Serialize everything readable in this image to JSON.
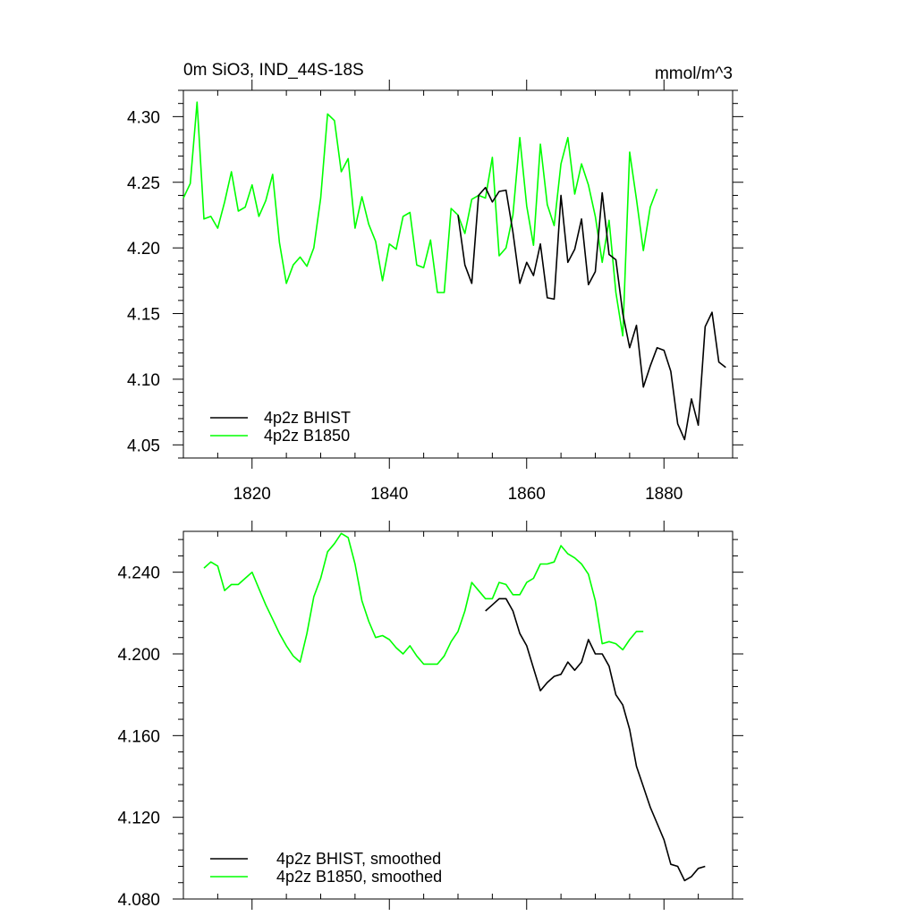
{
  "header": {
    "left_title": "0m SiO3, IND_44S-18S",
    "right_title": "mmol/m^3"
  },
  "colors": {
    "bhist": "#000000",
    "b1850": "#00ff00"
  },
  "chart_data": [
    {
      "type": "line",
      "title": "0m SiO3, IND_44S-18S",
      "units": "mmol/m^3",
      "xlim": [
        1810,
        1890
      ],
      "ylim": [
        4.04,
        4.32
      ],
      "xticks": [
        1820,
        1840,
        1860,
        1880
      ],
      "xtick_labels": [
        "1820",
        "1840",
        "1860",
        "1880"
      ],
      "yticks": [
        4.05,
        4.1,
        4.15,
        4.2,
        4.25,
        4.3
      ],
      "ytick_labels": [
        "4.05",
        "4.10",
        "4.15",
        "4.20",
        "4.25",
        "4.30"
      ],
      "grid": false,
      "legend_position": "bottom-left",
      "series": [
        {
          "name": "4p2z BHIST",
          "color": "#000000",
          "x": [
            1850,
            1851,
            1852,
            1853,
            1854,
            1855,
            1856,
            1857,
            1858,
            1859,
            1860,
            1861,
            1862,
            1863,
            1864,
            1865,
            1866,
            1867,
            1868,
            1869,
            1870,
            1871,
            1872,
            1873,
            1874,
            1875,
            1876,
            1877,
            1878,
            1879,
            1880,
            1881,
            1882,
            1883,
            1884,
            1885,
            1886,
            1887,
            1888,
            1889
          ],
          "values": [
            4.225,
            4.187,
            4.173,
            4.24,
            4.246,
            4.235,
            4.243,
            4.244,
            4.212,
            4.173,
            4.189,
            4.179,
            4.203,
            4.162,
            4.161,
            4.24,
            4.189,
            4.199,
            4.222,
            4.172,
            4.182,
            4.242,
            4.195,
            4.191,
            4.15,
            4.124,
            4.141,
            4.094,
            4.11,
            4.124,
            4.122,
            4.106,
            4.066,
            4.054,
            4.085,
            4.065,
            4.14,
            4.151,
            4.113,
            4.109
          ]
        },
        {
          "name": "4p2z B1850",
          "color": "#00ff00",
          "x": [
            1810,
            1811,
            1812,
            1813,
            1814,
            1815,
            1816,
            1817,
            1818,
            1819,
            1820,
            1821,
            1822,
            1823,
            1824,
            1825,
            1826,
            1827,
            1828,
            1829,
            1830,
            1831,
            1832,
            1833,
            1834,
            1835,
            1836,
            1837,
            1838,
            1839,
            1840,
            1841,
            1842,
            1843,
            1844,
            1845,
            1846,
            1847,
            1848,
            1849,
            1850,
            1851,
            1852,
            1853,
            1854,
            1855,
            1856,
            1857,
            1858,
            1859,
            1860,
            1861,
            1862,
            1863,
            1864,
            1865,
            1866,
            1867,
            1868,
            1869,
            1870,
            1871,
            1872,
            1873,
            1874,
            1875,
            1876,
            1877,
            1878,
            1879
          ],
          "values": [
            4.238,
            4.249,
            4.311,
            4.222,
            4.224,
            4.215,
            4.235,
            4.258,
            4.228,
            4.231,
            4.248,
            4.224,
            4.236,
            4.256,
            4.204,
            4.173,
            4.187,
            4.193,
            4.186,
            4.2,
            4.238,
            4.302,
            4.297,
            4.258,
            4.268,
            4.215,
            4.239,
            4.218,
            4.205,
            4.175,
            4.203,
            4.199,
            4.224,
            4.227,
            4.187,
            4.185,
            4.206,
            4.166,
            4.166,
            4.23,
            4.225,
            4.211,
            4.237,
            4.24,
            4.238,
            4.269,
            4.194,
            4.2,
            4.225,
            4.284,
            4.232,
            4.202,
            4.279,
            4.233,
            4.217,
            4.264,
            4.284,
            4.241,
            4.264,
            4.248,
            4.224,
            4.189,
            4.221,
            4.166,
            4.133,
            4.273,
            4.237,
            4.198,
            4.231,
            4.245
          ]
        }
      ]
    },
    {
      "type": "line",
      "xlim": [
        1810,
        1890
      ],
      "ylim": [
        4.08,
        4.26
      ],
      "xticks": [
        1820,
        1840,
        1860,
        1880
      ],
      "yticks": [
        4.08,
        4.12,
        4.16,
        4.2,
        4.24
      ],
      "ytick_labels": [
        "4.080",
        "4.120",
        "4.160",
        "4.200",
        "4.240"
      ],
      "grid": false,
      "legend_position": "bottom-left",
      "series": [
        {
          "name": "4p2z BHIST, smoothed",
          "color": "#000000",
          "x": [
            1854,
            1855,
            1856,
            1857,
            1858,
            1859,
            1860,
            1861,
            1862,
            1863,
            1864,
            1865,
            1866,
            1867,
            1868,
            1869,
            1870,
            1871,
            1872,
            1873,
            1874,
            1875,
            1876,
            1877,
            1878,
            1879,
            1880,
            1881,
            1882,
            1883,
            1884,
            1885,
            1886
          ],
          "values": [
            4.221,
            4.224,
            4.227,
            4.227,
            4.221,
            4.21,
            4.204,
            4.193,
            4.182,
            4.186,
            4.189,
            4.19,
            4.196,
            4.192,
            4.196,
            4.207,
            4.2,
            4.2,
            4.194,
            4.18,
            4.175,
            4.163,
            4.145,
            4.135,
            4.125,
            4.117,
            4.109,
            4.097,
            4.096,
            4.089,
            4.091,
            4.095,
            4.096
          ]
        },
        {
          "name": "4p2z B1850, smoothed",
          "color": "#00ff00",
          "x": [
            1813,
            1814,
            1815,
            1816,
            1817,
            1818,
            1819,
            1820,
            1821,
            1822,
            1823,
            1824,
            1825,
            1826,
            1827,
            1828,
            1829,
            1830,
            1831,
            1832,
            1833,
            1834,
            1835,
            1836,
            1837,
            1838,
            1839,
            1840,
            1841,
            1842,
            1843,
            1844,
            1845,
            1846,
            1847,
            1848,
            1849,
            1850,
            1851,
            1852,
            1853,
            1854,
            1855,
            1856,
            1857,
            1858,
            1859,
            1860,
            1861,
            1862,
            1863,
            1864,
            1865,
            1866,
            1867,
            1868,
            1869,
            1870,
            1871,
            1872,
            1873,
            1874,
            1875,
            1876,
            1877
          ],
          "values": [
            4.242,
            4.245,
            4.243,
            4.231,
            4.234,
            4.234,
            4.237,
            4.24,
            4.232,
            4.224,
            4.217,
            4.21,
            4.204,
            4.199,
            4.196,
            4.21,
            4.228,
            4.237,
            4.25,
            4.254,
            4.259,
            4.257,
            4.244,
            4.226,
            4.216,
            4.208,
            4.209,
            4.207,
            4.203,
            4.2,
            4.204,
            4.199,
            4.195,
            4.195,
            4.195,
            4.199,
            4.206,
            4.211,
            4.221,
            4.235,
            4.231,
            4.227,
            4.227,
            4.235,
            4.234,
            4.229,
            4.229,
            4.235,
            4.237,
            4.244,
            4.244,
            4.245,
            4.253,
            4.249,
            4.247,
            4.244,
            4.239,
            4.226,
            4.205,
            4.206,
            4.205,
            4.202,
            4.207,
            4.211,
            4.211
          ]
        }
      ]
    }
  ]
}
